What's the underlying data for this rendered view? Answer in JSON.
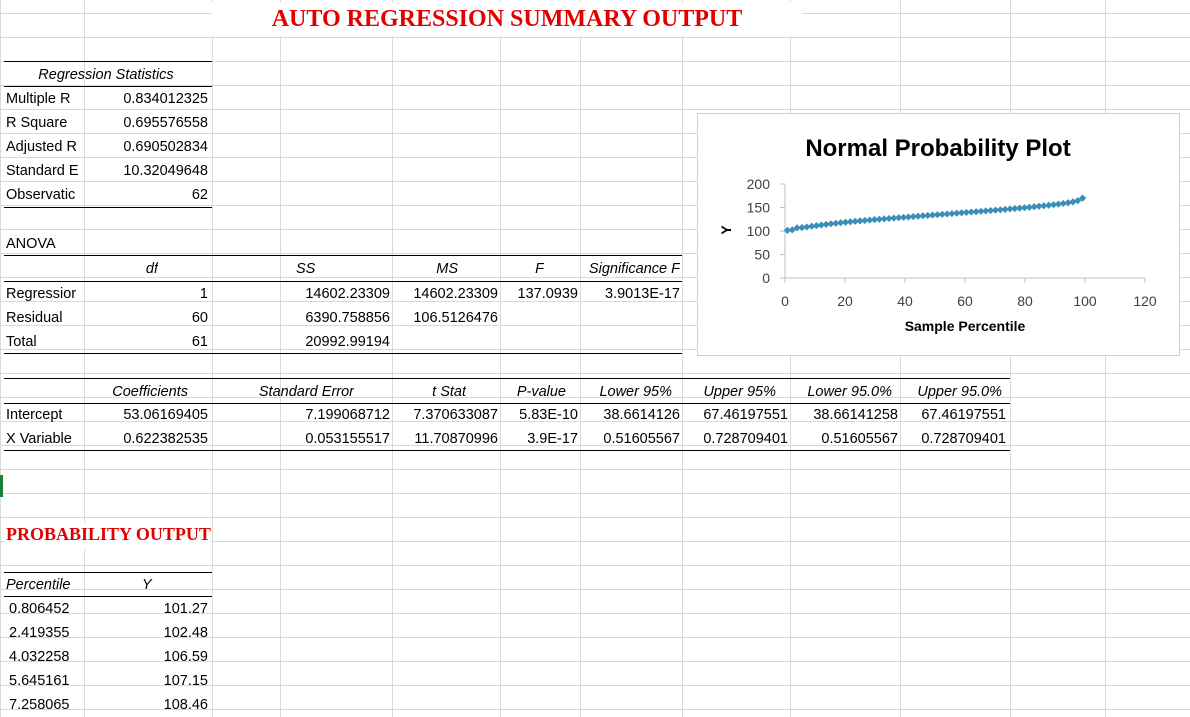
{
  "title": "AUTO REGRESSION SUMMARY OUTPUT",
  "regression_stats": {
    "header": "Regression Statistics",
    "rows": [
      {
        "label": "Multiple R",
        "value": "0.834012325"
      },
      {
        "label": "R Square",
        "value": "0.695576558"
      },
      {
        "label": "Adjusted R",
        "value": "0.690502834"
      },
      {
        "label": "Standard E",
        "value": "10.32049648"
      },
      {
        "label": "Observatic",
        "value": "62"
      }
    ]
  },
  "anova": {
    "label": "ANOVA",
    "headers": [
      "df",
      "SS",
      "MS",
      "F",
      "Significance F"
    ],
    "rows": [
      {
        "label": "Regressior",
        "df": "1",
        "ss": "14602.23309",
        "ms": "14602.23309",
        "f": "137.0939",
        "sigf": "3.9013E-17"
      },
      {
        "label": "Residual",
        "df": "60",
        "ss": "6390.758856",
        "ms": "106.5126476",
        "f": "",
        "sigf": ""
      },
      {
        "label": "Total",
        "df": "61",
        "ss": "20992.99194",
        "ms": "",
        "f": "",
        "sigf": ""
      }
    ]
  },
  "coefficients": {
    "headers": [
      "Coefficients",
      "Standard Error",
      "t Stat",
      "P-value",
      "Lower 95%",
      "Upper 95%",
      "Lower 95.0%",
      "Upper 95.0%"
    ],
    "rows": [
      {
        "label": "Intercept",
        "values": [
          "53.06169405",
          "7.199068712",
          "7.370633087",
          "5.83E-10",
          "38.6614126",
          "67.46197551",
          "38.66141258",
          "67.46197551"
        ]
      },
      {
        "label": "X Variable",
        "values": [
          "0.622382535",
          "0.053155517",
          "11.70870996",
          "3.9E-17",
          "0.51605567",
          "0.728709401",
          "0.51605567",
          "0.728709401"
        ]
      }
    ]
  },
  "probability": {
    "title": "PROBABILITY OUTPUT",
    "headers": [
      "Percentile",
      "Y"
    ],
    "rows": [
      {
        "percentile": "0.806452",
        "y": "101.27"
      },
      {
        "percentile": "2.419355",
        "y": "102.48"
      },
      {
        "percentile": "4.032258",
        "y": "106.59"
      },
      {
        "percentile": "5.645161",
        "y": "107.15"
      },
      {
        "percentile": "7.258065",
        "y": "108.46"
      }
    ]
  },
  "chart_data": {
    "type": "scatter",
    "title": "Normal Probability Plot",
    "xlabel": "Sample Percentile",
    "ylabel": "Y",
    "xlim": [
      0,
      120
    ],
    "ylim": [
      0,
      200
    ],
    "xticks": [
      0,
      20,
      40,
      60,
      80,
      100,
      120
    ],
    "yticks": [
      0,
      50,
      100,
      150,
      200
    ],
    "grid": false,
    "marker_color": "#3a8fb7",
    "x_start": 0.806452,
    "x_step": 1.612903,
    "n": 62,
    "y": [
      101.27,
      102.48,
      106.59,
      107.15,
      108.46,
      110.2,
      111.5,
      112.8,
      114.0,
      115.3,
      116.4,
      117.5,
      118.6,
      119.6,
      120.6,
      121.5,
      122.4,
      123.3,
      124.2,
      125.0,
      125.9,
      126.7,
      127.5,
      128.3,
      129.1,
      129.9,
      130.7,
      131.5,
      132.3,
      133.1,
      133.9,
      134.7,
      135.5,
      136.3,
      137.1,
      137.9,
      138.7,
      139.5,
      140.3,
      141.1,
      141.9,
      142.7,
      143.5,
      144.3,
      145.1,
      146.0,
      146.9,
      147.8,
      148.7,
      149.6,
      150.6,
      151.6,
      152.6,
      153.7,
      154.8,
      156.0,
      157.2,
      158.6,
      160.1,
      162.0,
      164.5,
      170.0
    ]
  }
}
